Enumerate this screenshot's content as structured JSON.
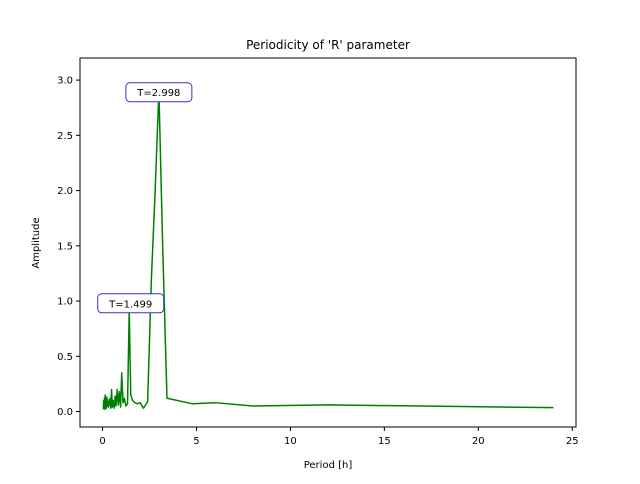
{
  "chart_data": {
    "type": "line",
    "title": "Periodicity of 'R' parameter",
    "xlabel": "Period [h]",
    "ylabel": "Amplitude",
    "xlim": [
      -1.2,
      25.2
    ],
    "ylim": [
      -0.14,
      3.2
    ],
    "xticks": [
      0,
      5,
      10,
      15,
      20,
      25
    ],
    "yticks": [
      0.0,
      0.5,
      1.0,
      1.5,
      2.0,
      2.5,
      3.0
    ],
    "xtick_labels": [
      "0",
      "5",
      "10",
      "15",
      "20",
      "25"
    ],
    "ytick_labels": [
      "0.0",
      "0.5",
      "1.0",
      "1.5",
      "2.0",
      "2.5",
      "3.0"
    ],
    "grid": false,
    "line_color": "#008000",
    "annotation_border_color": "#3333cc",
    "series": [
      {
        "x": [
          0.04,
          0.06,
          0.08,
          0.1,
          0.12,
          0.14,
          0.16,
          0.18,
          0.2,
          0.22,
          0.25,
          0.28,
          0.31,
          0.34,
          0.37,
          0.4,
          0.44,
          0.48,
          0.52,
          0.57,
          0.62,
          0.67,
          0.72,
          0.78,
          0.84,
          0.9,
          0.96,
          1.02,
          1.09,
          1.16,
          1.24,
          1.33,
          1.42,
          1.5,
          1.6,
          1.72,
          1.85,
          2.0,
          2.18,
          2.4,
          2.6,
          2.8,
          3.0,
          3.2,
          3.43,
          4.8,
          6.0,
          8.0,
          12.0,
          24.0
        ],
        "y": [
          0.02,
          0.1,
          0.03,
          0.12,
          0.02,
          0.15,
          0.05,
          0.1,
          0.03,
          0.13,
          0.05,
          0.11,
          0.04,
          0.09,
          0.06,
          0.12,
          0.03,
          0.2,
          0.04,
          0.1,
          0.03,
          0.14,
          0.05,
          0.2,
          0.06,
          0.18,
          0.04,
          0.35,
          0.08,
          0.12,
          0.05,
          0.07,
          0.92,
          0.15,
          0.1,
          0.08,
          0.07,
          0.08,
          0.03,
          0.09,
          1.2,
          2.0,
          2.9,
          1.5,
          0.12,
          0.07,
          0.08,
          0.05,
          0.06,
          0.035
        ]
      }
    ],
    "annotations": [
      {
        "text": "T=2.998",
        "x": 2.998,
        "y": 2.89
      },
      {
        "text": "T=1.499",
        "x": 1.499,
        "y": 0.98
      }
    ]
  }
}
